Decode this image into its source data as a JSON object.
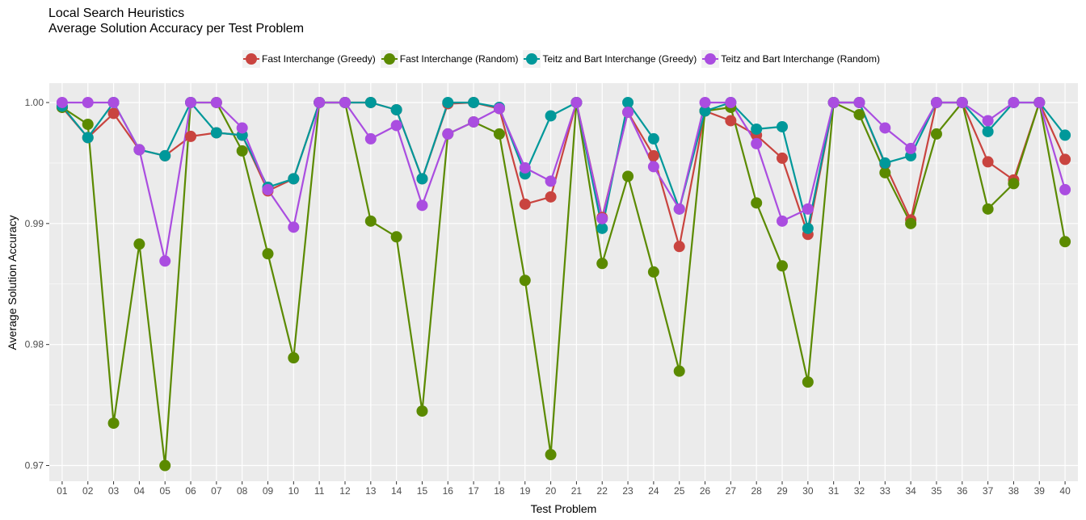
{
  "title": "Local Search Heuristics",
  "subtitle": "Average Solution Accuracy per Test Problem",
  "chart_data": {
    "type": "line",
    "title": "Local Search Heuristics",
    "subtitle": "Average Solution Accuracy per Test Problem",
    "xlabel": "Test Problem",
    "ylabel": "Average Solution Accuracy",
    "categories": [
      "01",
      "02",
      "03",
      "04",
      "05",
      "06",
      "07",
      "08",
      "09",
      "10",
      "11",
      "12",
      "13",
      "14",
      "15",
      "16",
      "17",
      "18",
      "19",
      "20",
      "21",
      "22",
      "23",
      "24",
      "25",
      "26",
      "27",
      "28",
      "29",
      "30",
      "31",
      "32",
      "33",
      "34",
      "35",
      "36",
      "37",
      "38",
      "39",
      "40"
    ],
    "y_ticks": [
      "0.97",
      "0.98",
      "0.99",
      "1.00"
    ],
    "ylim": [
      0.9687,
      1.0016
    ],
    "grid": true,
    "legend_position": "top",
    "series": [
      {
        "name": "Fast Interchange (Greedy)",
        "color": "#C9443F",
        "values": [
          0.9996,
          0.9971,
          0.9991,
          0.9961,
          0.9956,
          0.9972,
          0.9975,
          0.9973,
          0.9927,
          0.9937,
          1.0,
          1.0,
          1.0,
          0.9994,
          0.9937,
          0.9999,
          1.0,
          0.9995,
          0.9916,
          0.9922,
          1.0,
          0.9905,
          0.9992,
          0.9956,
          0.9881,
          0.9993,
          0.9985,
          0.9973,
          0.9954,
          0.9891,
          1.0,
          1.0,
          0.9949,
          0.9903,
          1.0,
          1.0,
          0.9951,
          0.9936,
          1.0,
          0.9953
        ]
      },
      {
        "name": "Fast Interchange (Random)",
        "color": "#5B8A00",
        "values": [
          0.9996,
          0.9982,
          0.9735,
          0.9883,
          0.97,
          1.0,
          1.0,
          0.996,
          0.9875,
          0.9789,
          1.0,
          1.0,
          0.9902,
          0.9889,
          0.9745,
          0.9974,
          0.9984,
          0.9974,
          0.9853,
          0.9709,
          1.0,
          0.9867,
          0.9939,
          0.986,
          0.9778,
          0.9993,
          0.9996,
          0.9917,
          0.9865,
          0.9769,
          1.0,
          0.999,
          0.9942,
          0.99,
          0.9974,
          1.0,
          0.9912,
          0.9933,
          1.0,
          0.9885
        ]
      },
      {
        "name": "Teitz and Bart Interchange (Greedy)",
        "color": "#00989A",
        "values": [
          0.9997,
          0.9971,
          1.0,
          0.9961,
          0.9956,
          1.0,
          0.9975,
          0.9973,
          0.993,
          0.9937,
          1.0,
          1.0,
          1.0,
          0.9994,
          0.9937,
          1.0,
          1.0,
          0.9996,
          0.9941,
          0.9989,
          1.0,
          0.9896,
          1.0,
          0.997,
          0.9912,
          0.9993,
          1.0,
          0.9978,
          0.998,
          0.9896,
          1.0,
          1.0,
          0.995,
          0.9956,
          1.0,
          1.0,
          0.9976,
          1.0,
          1.0,
          0.9973
        ]
      },
      {
        "name": "Teitz and Bart Interchange (Random)",
        "color": "#AA4DE0",
        "values": [
          1.0,
          1.0,
          1.0,
          0.9961,
          0.9869,
          1.0,
          1.0,
          0.9979,
          0.9928,
          0.9897,
          1.0,
          1.0,
          0.997,
          0.9981,
          0.9915,
          0.9974,
          0.9984,
          0.9995,
          0.9946,
          0.9935,
          1.0,
          0.9904,
          0.9992,
          0.9947,
          0.9912,
          1.0,
          1.0,
          0.9966,
          0.9902,
          0.9912,
          1.0,
          1.0,
          0.9979,
          0.9962,
          1.0,
          1.0,
          0.9985,
          1.0,
          1.0,
          0.9928
        ]
      }
    ]
  }
}
